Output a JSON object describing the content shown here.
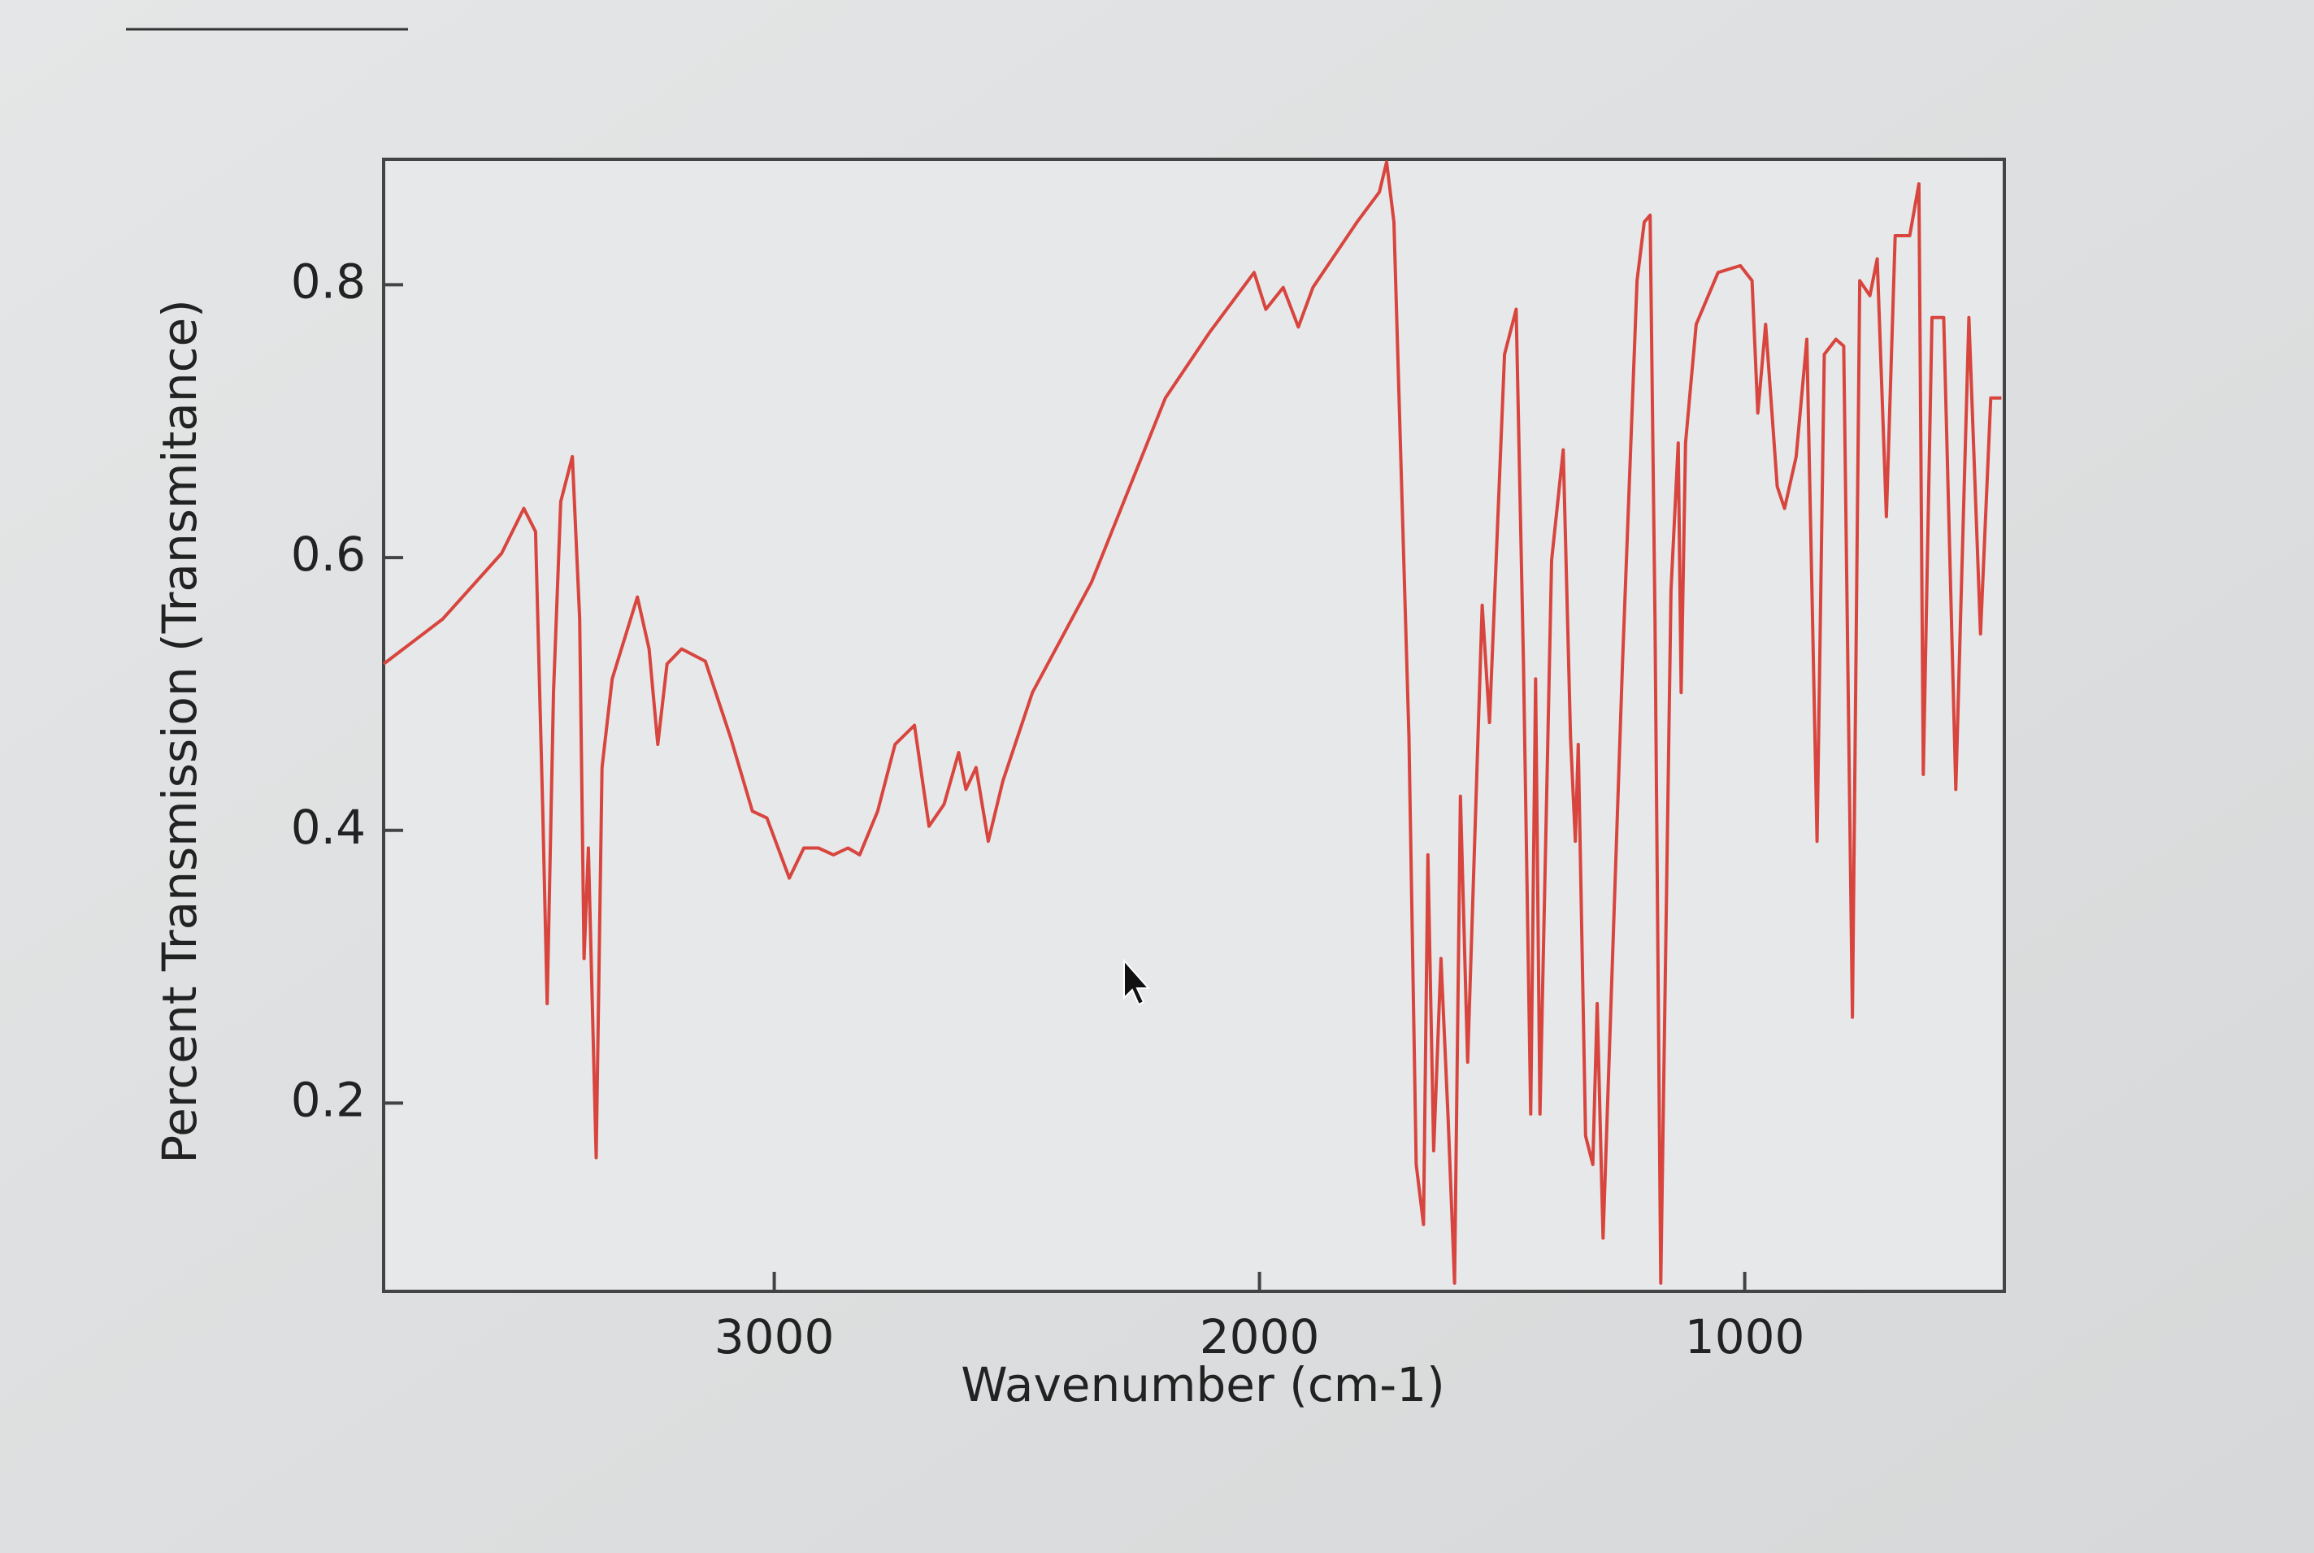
{
  "chart_data": {
    "type": "line",
    "xlabel": "Wavenumber (cm-1)",
    "ylabel": "Percent Transmission (Transmitance)",
    "color": "#d8453e",
    "xlim": [
      3805,
      465
    ],
    "ylim": [
      0.062,
      0.892
    ],
    "xticks": [
      3000,
      2000,
      1000
    ],
    "yticks": [
      0.2,
      0.4,
      0.6,
      0.8
    ],
    "x": [
      3805,
      3683,
      3562,
      3516,
      3492,
      3477,
      3468,
      3455,
      3440,
      3416,
      3401,
      3392,
      3383,
      3367,
      3355,
      3334,
      3282,
      3258,
      3240,
      3221,
      3191,
      3142,
      3090,
      3045,
      3015,
      2969,
      2939,
      2909,
      2878,
      2848,
      2824,
      2787,
      2751,
      2711,
      2681,
      2650,
      2620,
      2605,
      2584,
      2559,
      2529,
      2468,
      2346,
      2194,
      2103,
      2011,
      1987,
      1951,
      1920,
      1890,
      1799,
      1753,
      1738,
      1723,
      1692,
      1677,
      1662,
      1653,
      1641,
      1626,
      1611,
      1598,
      1586,
      1571,
      1541,
      1526,
      1495,
      1471,
      1456,
      1441,
      1431,
      1422,
      1398,
      1374,
      1359,
      1349,
      1343,
      1328,
      1313,
      1304,
      1292,
      1252,
      1222,
      1207,
      1195,
      1185,
      1173,
      1152,
      1137,
      1131,
      1122,
      1100,
      1055,
      1009,
      985,
      973,
      957,
      933,
      918,
      894,
      872,
      851,
      836,
      812,
      796,
      778,
      763,
      742,
      727,
      708,
      690,
      660,
      641,
      632,
      614,
      590,
      565,
      538,
      514,
      493,
      471
    ],
    "values": [
      0.522,
      0.555,
      0.603,
      0.636,
      0.619,
      0.414,
      0.273,
      0.501,
      0.641,
      0.674,
      0.555,
      0.306,
      0.387,
      0.16,
      0.446,
      0.511,
      0.571,
      0.533,
      0.463,
      0.522,
      0.533,
      0.524,
      0.468,
      0.414,
      0.409,
      0.365,
      0.387,
      0.387,
      0.382,
      0.387,
      0.382,
      0.414,
      0.463,
      0.477,
      0.403,
      0.419,
      0.457,
      0.43,
      0.446,
      0.392,
      0.436,
      0.501,
      0.582,
      0.717,
      0.765,
      0.809,
      0.782,
      0.798,
      0.769,
      0.798,
      0.846,
      0.868,
      0.89,
      0.846,
      0.468,
      0.155,
      0.111,
      0.382,
      0.165,
      0.306,
      0.187,
      0.068,
      0.425,
      0.23,
      0.565,
      0.479,
      0.749,
      0.782,
      0.522,
      0.192,
      0.511,
      0.192,
      0.598,
      0.679,
      0.468,
      0.392,
      0.463,
      0.176,
      0.155,
      0.273,
      0.101,
      0.522,
      0.803,
      0.846,
      0.851,
      0.555,
      0.068,
      0.576,
      0.684,
      0.501,
      0.684,
      0.771,
      0.809,
      0.814,
      0.803,
      0.706,
      0.771,
      0.652,
      0.636,
      0.674,
      0.76,
      0.392,
      0.749,
      0.76,
      0.755,
      0.263,
      0.803,
      0.792,
      0.819,
      0.63,
      0.836,
      0.836,
      0.874,
      0.441,
      0.776,
      0.776,
      0.43,
      0.776,
      0.544,
      0.717,
      0.717
    ]
  }
}
